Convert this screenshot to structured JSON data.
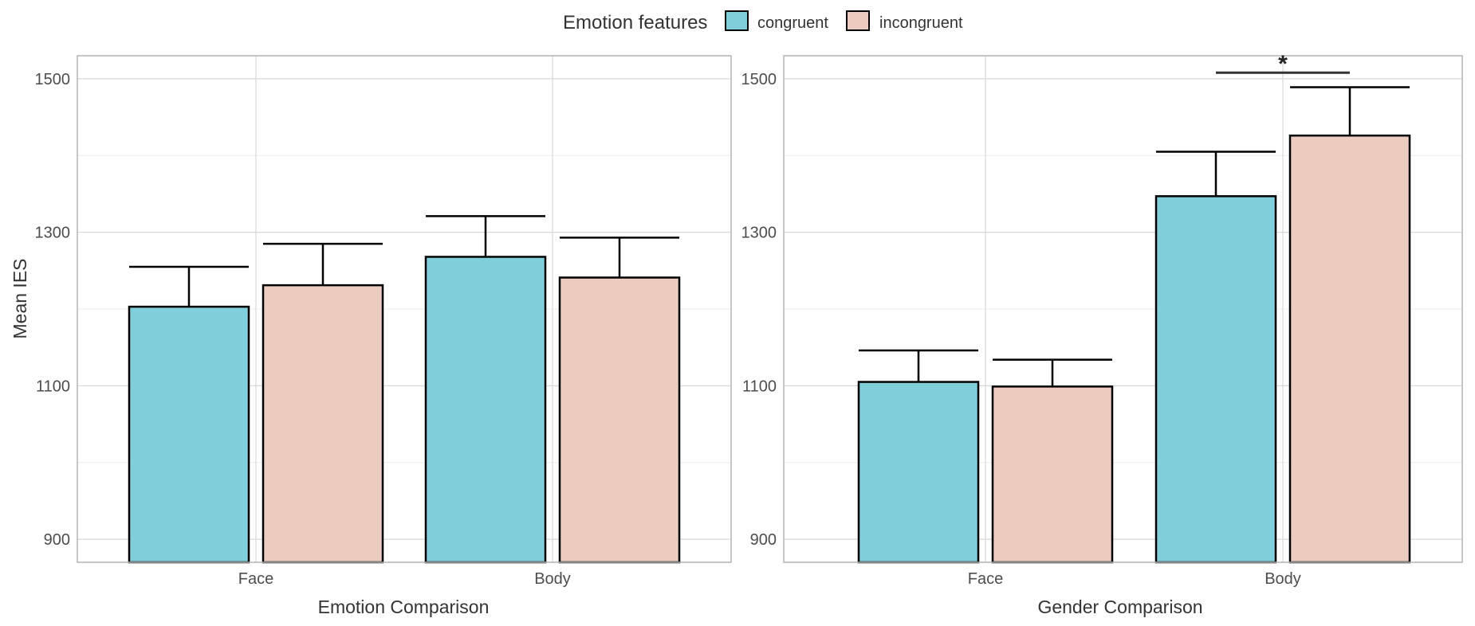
{
  "legend": {
    "title": "Emotion features",
    "position": "top-center",
    "entries": [
      {
        "label": "congruent",
        "color": "#82CFDC"
      },
      {
        "label": "incongruent",
        "color": "#EBCCBE"
      }
    ]
  },
  "chart_data": [
    {
      "type": "bar",
      "xlabel": "Emotion Comparison",
      "ylabel": "Mean IES",
      "categories": [
        "Face",
        "Body"
      ],
      "ylim": [
        870,
        1530
      ],
      "yticks": [
        900,
        1100,
        1300,
        1500
      ],
      "grid": true,
      "series": [
        {
          "name": "congruent",
          "color": "#82CFDC",
          "values": [
            1203,
            1268
          ],
          "error_upper": [
            1255,
            1321
          ]
        },
        {
          "name": "incongruent",
          "color": "#EBCCBE",
          "values": [
            1231,
            1241
          ],
          "error_upper": [
            1285,
            1293
          ]
        }
      ],
      "annotations": []
    },
    {
      "type": "bar",
      "xlabel": "Gender Comparison",
      "ylabel": "",
      "categories": [
        "Face",
        "Body"
      ],
      "ylim": [
        870,
        1530
      ],
      "yticks": [
        900,
        1100,
        1300,
        1500
      ],
      "grid": true,
      "series": [
        {
          "name": "congruent",
          "color": "#82CFDC",
          "values": [
            1105,
            1347
          ],
          "error_upper": [
            1146,
            1405
          ]
        },
        {
          "name": "incongruent",
          "color": "#EBCCBE",
          "values": [
            1099,
            1426
          ],
          "error_upper": [
            1134,
            1489
          ]
        }
      ],
      "annotations": [
        {
          "text": "*",
          "category": "Body",
          "between": [
            "congruent",
            "incongruent"
          ],
          "y": 1508
        }
      ]
    }
  ]
}
